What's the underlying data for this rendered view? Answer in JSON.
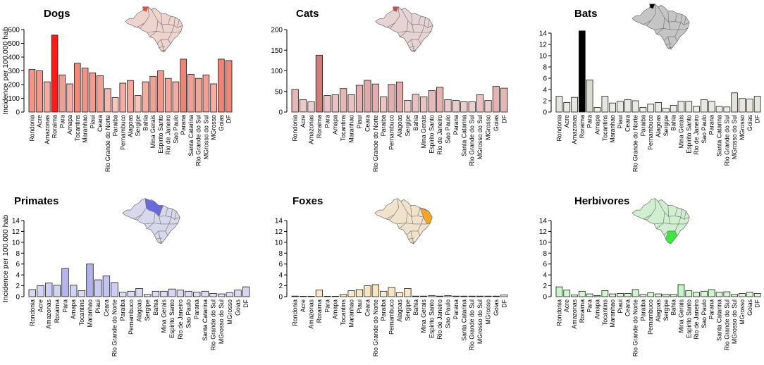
{
  "ylabel": "Incidence per 100.000 hab",
  "colors": {
    "dogs": "#e8503a",
    "dogs_peak": "#ff1a1a",
    "cats": "#c0504d",
    "cats_peak": "#9b2020",
    "bats": "#b5b59e",
    "bats_peak": "#000000",
    "primates": "#6a6adc",
    "primates_peak": "#1e1ee6",
    "foxes": "#f5a623",
    "herbivores": "#3ee63e",
    "map_fill": "#f0f0f0",
    "map_edge": "#6d6d6d"
  },
  "chart_data": [
    {
      "type": "bar",
      "title": "Dogs",
      "xlabel": "",
      "ylabel": "Incidence per 100.000 hab",
      "ylim": [
        0,
        600
      ],
      "yticks": [
        0,
        100,
        200,
        300,
        400,
        500,
        600
      ],
      "color": "dogs",
      "peak_color": "dogs_peak",
      "categories": [
        "Rondonia",
        "Acre",
        "Amazonas",
        "Roraima",
        "Para",
        "Amapa",
        "Tocantins",
        "Maranhao",
        "Piaui",
        "Ceara",
        "Rio Grande do Norte",
        "Paraiba",
        "Pernambuco",
        "Alagoas",
        "Sergipe",
        "Bahia",
        "Mina Gerais",
        "Espirito Santo",
        "Rio de Janeiro",
        "Sao Paulo",
        "Parana",
        "Santa Catarina",
        "Rio Grande do Sul",
        "MGrosso do Sul",
        "MGrosso",
        "Goias",
        "DF"
      ],
      "values": [
        310,
        300,
        220,
        560,
        270,
        205,
        355,
        320,
        285,
        265,
        170,
        105,
        210,
        230,
        120,
        220,
        260,
        300,
        245,
        220,
        385,
        275,
        245,
        270,
        205,
        385,
        375
      ]
    },
    {
      "type": "bar",
      "title": "Cats",
      "xlabel": "",
      "ylabel": "",
      "ylim": [
        0,
        200
      ],
      "yticks": [
        0,
        50,
        100,
        150,
        200
      ],
      "color": "cats",
      "peak_color": "cats_peak",
      "categories": [
        "Rondonia",
        "Acre",
        "Amazonas",
        "Roraima",
        "Para",
        "Amapa",
        "Tocantins",
        "Maranhao",
        "Piaui",
        "Ceara",
        "Rio Grande do Norte",
        "Paraiba",
        "Pernambuco",
        "Alagoas",
        "Sergipe",
        "Bahia",
        "Mina Gerais",
        "Espirito Santo",
        "Rio de Janeiro",
        "Sao Paulo",
        "Parana",
        "Santa Catarina",
        "Rio Grande do Sul",
        "MGrosso do Sul",
        "MGrosso",
        "Goias",
        "DF"
      ],
      "values": [
        55,
        30,
        25,
        138,
        40,
        42,
        57,
        42,
        65,
        77,
        68,
        37,
        67,
        73,
        28,
        43,
        37,
        52,
        60,
        30,
        28,
        25,
        25,
        42,
        28,
        62,
        58
      ]
    },
    {
      "type": "bar",
      "title": "Bats",
      "xlabel": "",
      "ylabel": "",
      "ylim": [
        0,
        14
      ],
      "yticks": [
        0,
        2,
        4,
        6,
        8,
        10,
        12,
        14
      ],
      "color": "bats",
      "peak_color": "bats_peak",
      "categories": [
        "Rondonia",
        "Acre",
        "Amazonas",
        "Roraima",
        "Para",
        "Amapa",
        "Tocantins",
        "Maranhao",
        "Piaui",
        "Ceara",
        "Rio Grande do Norte",
        "Paraiba",
        "Pernambuco",
        "Alagoas",
        "Sergipe",
        "Bahia",
        "Mina Gerais",
        "Espirito Santo",
        "Rio de Janeiro",
        "Sao Paulo",
        "Parana",
        "Santa Catarina",
        "Rio Grande do Sul",
        "MGrosso do Sul",
        "MGrosso",
        "Goias",
        "DF"
      ],
      "values": [
        2.8,
        1.7,
        2.6,
        14.4,
        5.7,
        0.8,
        2.8,
        1.6,
        1.9,
        2.2,
        2.0,
        0.8,
        1.4,
        1.7,
        0.7,
        1.2,
        1.9,
        1.9,
        1.0,
        2.2,
        1.9,
        1.0,
        0.9,
        3.4,
        2.4,
        2.3,
        2.8
      ]
    },
    {
      "type": "bar",
      "title": "Primates",
      "xlabel": "",
      "ylabel": "Incidence per 100.000 hab",
      "ylim": [
        0,
        14
      ],
      "yticks": [
        0,
        2,
        4,
        6,
        8,
        10,
        12,
        14
      ],
      "color": "primates",
      "peak_color": "primates_peak",
      "categories": [
        "Rondonia",
        "Acre",
        "Amazonas",
        "Roraima",
        "Para",
        "Amapa",
        "Tocantins",
        "Maranhao",
        "Piaui",
        "Ceara",
        "Rio Grande do Norte",
        "Paraiba",
        "Pernambuco",
        "Alagoas",
        "Sergipe",
        "Bahia",
        "Mina Gerais",
        "Espirito Santo",
        "Rio de Janeiro",
        "Sao Paulo",
        "Parana",
        "Santa Catarina",
        "Rio Grande do Sul",
        "MGrosso do Sul",
        "MGrosso",
        "Goias",
        "DF"
      ],
      "values": [
        1.3,
        2.0,
        2.5,
        2.1,
        5.2,
        2.1,
        1.1,
        6.0,
        3.1,
        3.8,
        2.6,
        0.8,
        1.0,
        1.5,
        0.4,
        1.0,
        1.0,
        1.4,
        1.2,
        1.0,
        0.8,
        1.0,
        0.6,
        0.5,
        0.7,
        1.2,
        1.8
      ]
    },
    {
      "type": "bar",
      "title": "Foxes",
      "xlabel": "",
      "ylabel": "",
      "ylim": [
        0,
        14
      ],
      "yticks": [
        0,
        2,
        4,
        6,
        8,
        10,
        12,
        14
      ],
      "color": "foxes",
      "peak_color": "foxes",
      "categories": [
        "Rondonia",
        "Acre",
        "Amazonas",
        "Roraima",
        "Para",
        "Amapa",
        "Tocantins",
        "Maranhao",
        "Piaui",
        "Ceara",
        "Rio Grande do Norte",
        "Paraiba",
        "Pernambuco",
        "Alagoas",
        "Sergipe",
        "Bahia",
        "Mina Gerais",
        "Espirito Santo",
        "Rio de Janeiro",
        "Sao Paulo",
        "Parana",
        "Santa Catarina",
        "Rio Grande do Sul",
        "MGrosso do Sul",
        "MGrosso",
        "Goias",
        "DF"
      ],
      "values": [
        0.1,
        0.0,
        0.0,
        1.2,
        0.0,
        0.0,
        0.4,
        1.1,
        1.3,
        2.0,
        2.2,
        1.0,
        1.7,
        0.7,
        1.5,
        0.1,
        0.1,
        0.2,
        0.1,
        0.2,
        0.1,
        0.1,
        0.1,
        0.1,
        0.1,
        0.1,
        0.3
      ]
    },
    {
      "type": "bar",
      "title": "Herbivores",
      "xlabel": "",
      "ylabel": "",
      "ylim": [
        0,
        14
      ],
      "yticks": [
        0,
        2,
        4,
        6,
        8,
        10,
        12,
        14
      ],
      "color": "herbivores",
      "peak_color": "herbivores",
      "categories": [
        "Rondonia",
        "Acre",
        "Amazonas",
        "Roraima",
        "Para",
        "Amapa",
        "Tocantins",
        "Maranhao",
        "Piaui",
        "Ceara",
        "Rio Grande do Norte",
        "Paraiba",
        "Pernambuco",
        "Alagoas",
        "Sergipe",
        "Bahia",
        "Mina Gerais",
        "Espirito Santo",
        "Rio de Janeiro",
        "Sao Paulo",
        "Parana",
        "Santa Catarina",
        "Rio Grande do Sul",
        "MGrosso do Sul",
        "MGrosso",
        "Goias",
        "DF"
      ],
      "values": [
        1.8,
        1.2,
        0.3,
        1.0,
        0.5,
        0.2,
        1.1,
        0.5,
        0.6,
        0.6,
        1.3,
        0.4,
        0.7,
        0.5,
        0.4,
        0.4,
        2.2,
        1.1,
        0.8,
        1.0,
        1.3,
        0.8,
        0.9,
        0.4,
        0.6,
        0.8,
        0.6
      ]
    }
  ]
}
